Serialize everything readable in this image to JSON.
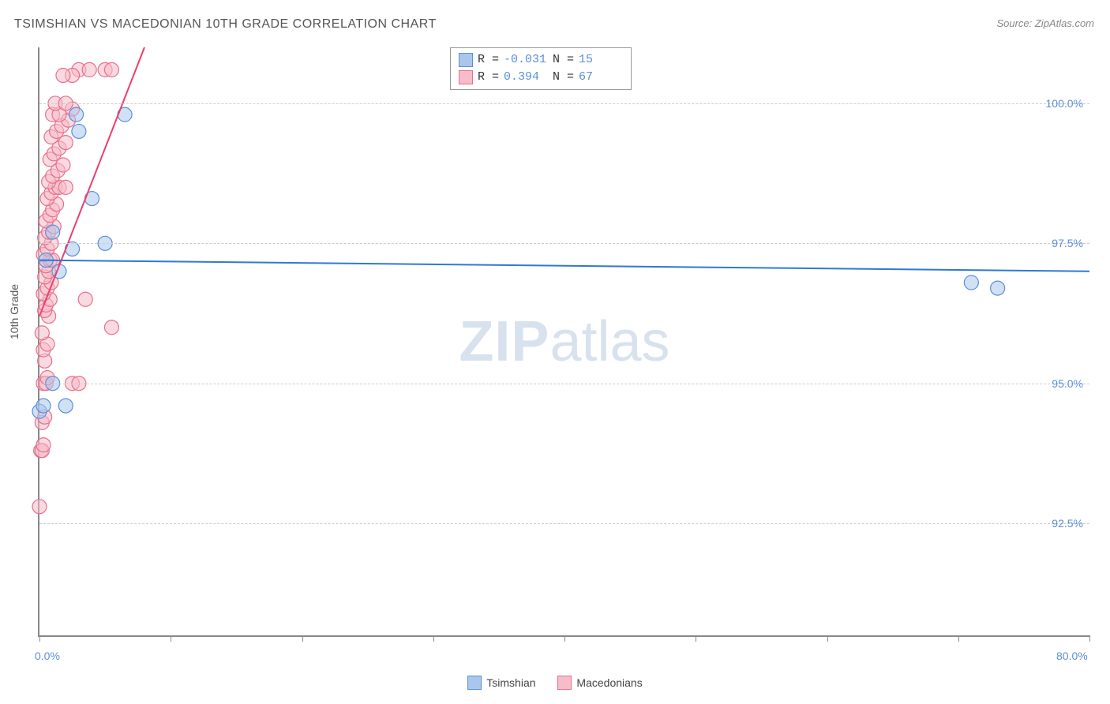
{
  "title": "TSIMSHIAN VS MACEDONIAN 10TH GRADE CORRELATION CHART",
  "source": "Source: ZipAtlas.com",
  "ylabel": "10th Grade",
  "watermark_bold": "ZIP",
  "watermark_light": "atlas",
  "colors": {
    "series_blue_fill": "#a9c7ec",
    "series_blue_stroke": "#5b8fd6",
    "series_pink_fill": "#f6bcc9",
    "series_pink_stroke": "#e86f8b",
    "trend_blue": "#2f78d6",
    "trend_pink": "#ed3e6c",
    "grid": "#cccccc",
    "axis": "#888888",
    "tick_text": "#5b8fd6",
    "title_text": "#555555"
  },
  "chart": {
    "type": "scatter",
    "xlim": [
      0,
      80
    ],
    "ylim": [
      90.5,
      101.0
    ],
    "y_gridlines": [
      92.5,
      95.0,
      97.5,
      100.0
    ],
    "y_tick_labels": [
      "92.5%",
      "95.0%",
      "97.5%",
      "100.0%"
    ],
    "x_ticks": [
      0,
      10,
      20,
      30,
      40,
      50,
      60,
      70,
      80
    ],
    "x_tick_labels_shown": {
      "0": "0.0%",
      "80": "80.0%"
    },
    "marker_radius": 9,
    "marker_opacity": 0.55,
    "trend_line_width": 2
  },
  "legend_top": [
    {
      "swatch": "blue",
      "r_label": "R = ",
      "r_value": "-0.031",
      "n_label": "N = ",
      "n_value": "15"
    },
    {
      "swatch": "pink",
      "r_label": "R = ",
      "r_value": "0.394",
      "n_label": "N = ",
      "n_value": "67"
    }
  ],
  "legend_bottom": [
    {
      "swatch": "blue",
      "label": "Tsimshian"
    },
    {
      "swatch": "pink",
      "label": "Macedonians"
    }
  ],
  "series_blue": {
    "trend": {
      "x1": 0,
      "y1": 97.2,
      "x2": 80,
      "y2": 97.0
    },
    "points": [
      [
        0.0,
        94.5
      ],
      [
        0.3,
        94.6
      ],
      [
        0.5,
        97.2
      ],
      [
        1.0,
        97.7
      ],
      [
        1.0,
        95.0
      ],
      [
        1.5,
        97.0
      ],
      [
        2.0,
        94.6
      ],
      [
        2.5,
        97.4
      ],
      [
        2.8,
        99.8
      ],
      [
        3.0,
        99.5
      ],
      [
        4.0,
        98.3
      ],
      [
        5.0,
        97.5
      ],
      [
        6.5,
        99.8
      ],
      [
        71.0,
        96.8
      ],
      [
        73.0,
        96.7
      ]
    ]
  },
  "series_pink": {
    "trend": {
      "x1": 0,
      "y1": 96.2,
      "x2": 8.0,
      "y2": 101.0
    },
    "points": [
      [
        0.0,
        92.8
      ],
      [
        0.1,
        93.8
      ],
      [
        0.2,
        93.8
      ],
      [
        0.3,
        93.9
      ],
      [
        0.2,
        94.3
      ],
      [
        0.4,
        94.4
      ],
      [
        0.3,
        95.0
      ],
      [
        0.5,
        95.0
      ],
      [
        0.6,
        95.1
      ],
      [
        0.4,
        95.4
      ],
      [
        0.3,
        95.6
      ],
      [
        0.6,
        95.7
      ],
      [
        0.2,
        95.9
      ],
      [
        0.7,
        96.2
      ],
      [
        0.4,
        96.3
      ],
      [
        0.5,
        96.4
      ],
      [
        0.8,
        96.5
      ],
      [
        0.3,
        96.6
      ],
      [
        0.6,
        96.7
      ],
      [
        0.9,
        96.8
      ],
      [
        0.4,
        96.9
      ],
      [
        0.7,
        97.0
      ],
      [
        0.5,
        97.1
      ],
      [
        0.8,
        97.2
      ],
      [
        1.0,
        97.2
      ],
      [
        0.3,
        97.3
      ],
      [
        0.6,
        97.4
      ],
      [
        0.9,
        97.5
      ],
      [
        0.4,
        97.6
      ],
      [
        0.7,
        97.7
      ],
      [
        1.1,
        97.8
      ],
      [
        0.5,
        97.9
      ],
      [
        0.8,
        98.0
      ],
      [
        1.0,
        98.1
      ],
      [
        1.3,
        98.2
      ],
      [
        0.6,
        98.3
      ],
      [
        0.9,
        98.4
      ],
      [
        1.2,
        98.5
      ],
      [
        1.5,
        98.5
      ],
      [
        2.0,
        98.5
      ],
      [
        0.7,
        98.6
      ],
      [
        1.0,
        98.7
      ],
      [
        1.4,
        98.8
      ],
      [
        1.8,
        98.9
      ],
      [
        0.8,
        99.0
      ],
      [
        1.1,
        99.1
      ],
      [
        1.5,
        99.2
      ],
      [
        2.0,
        99.3
      ],
      [
        0.9,
        99.4
      ],
      [
        1.3,
        99.5
      ],
      [
        1.7,
        99.6
      ],
      [
        2.2,
        99.7
      ],
      [
        1.0,
        99.8
      ],
      [
        1.5,
        99.8
      ],
      [
        2.5,
        99.9
      ],
      [
        1.2,
        100.0
      ],
      [
        2.0,
        100.0
      ],
      [
        3.0,
        100.6
      ],
      [
        3.8,
        100.6
      ],
      [
        5.0,
        100.6
      ],
      [
        5.5,
        100.6
      ],
      [
        2.5,
        100.5
      ],
      [
        1.8,
        100.5
      ],
      [
        2.5,
        95.0
      ],
      [
        3.0,
        95.0
      ],
      [
        3.5,
        96.5
      ],
      [
        5.5,
        96.0
      ]
    ]
  }
}
